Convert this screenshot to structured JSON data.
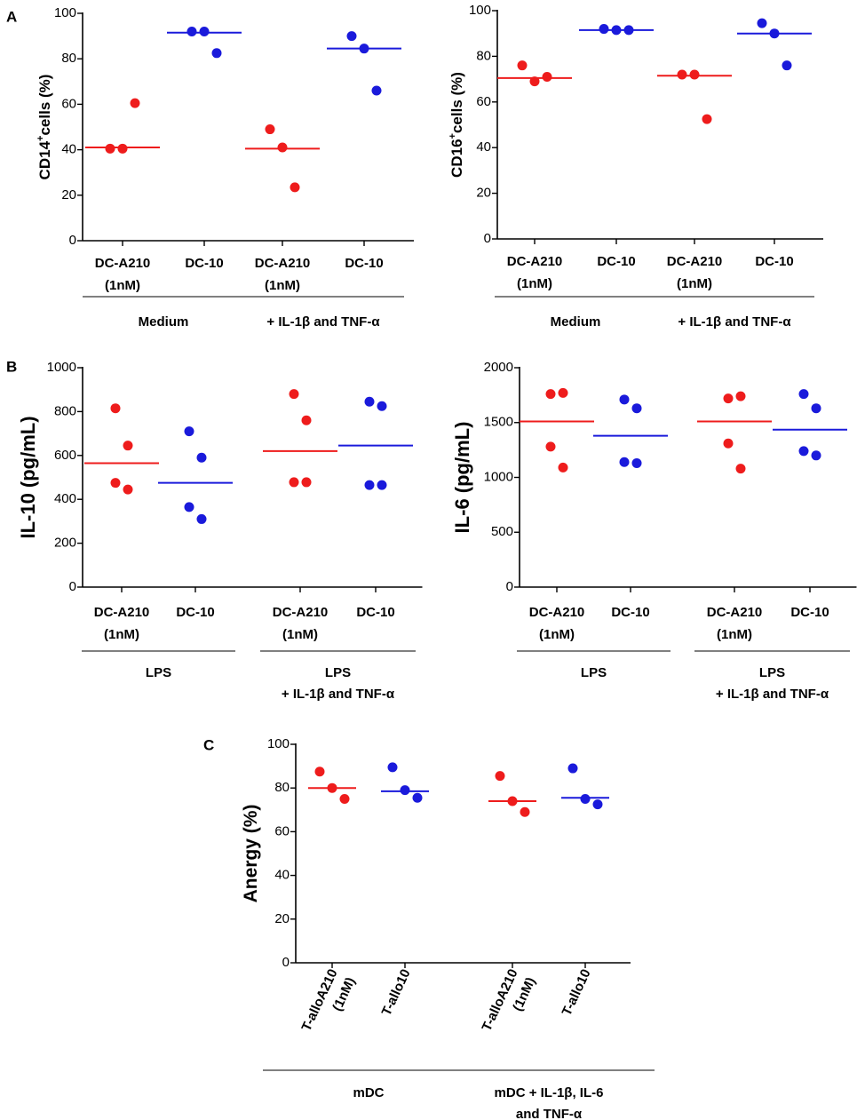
{
  "colors": {
    "dc_a210": "#ee1c1c",
    "dc_10": "#1a1adb",
    "axis": "#000000"
  },
  "chart_data": [
    {
      "id": "A1",
      "type": "scatter",
      "panel_letter": "A",
      "ylabel_main": "CD14",
      "ylabel_sup": "+",
      "ylabel_tail": "cells (%)",
      "ylim": [
        0,
        100
      ],
      "yticks": [
        "0",
        "20",
        "40",
        "60",
        "80",
        "100"
      ],
      "categories": [
        {
          "label": [
            "DC-A210",
            "(1nM)"
          ],
          "color_key": "dc_a210",
          "points": [
            40.5,
            40.5,
            60.5
          ],
          "median": 41
        },
        {
          "label": [
            "DC-10"
          ],
          "color_key": "dc_10",
          "points": [
            92,
            92,
            82.5
          ],
          "median": 91.5
        },
        {
          "label": [
            "DC-A210",
            "(1nM)"
          ],
          "color_key": "dc_a210",
          "points": [
            49,
            41,
            23.5
          ],
          "median": 40.5
        },
        {
          "label": [
            "DC-10"
          ],
          "color_key": "dc_10",
          "points": [
            90,
            84.5,
            66
          ],
          "median": 84.5
        }
      ],
      "groups": [
        {
          "label": [
            "Medium"
          ],
          "span": [
            0,
            1
          ]
        },
        {
          "label": [
            "+ IL-1β and TNF-α"
          ],
          "span": [
            2,
            3
          ]
        }
      ]
    },
    {
      "id": "A2",
      "type": "scatter",
      "panel_letter": "",
      "ylabel_main": "CD16",
      "ylabel_sup": "+",
      "ylabel_tail": "cells (%)",
      "ylim": [
        0,
        100
      ],
      "yticks": [
        "0",
        "20",
        "40",
        "60",
        "80",
        "100"
      ],
      "categories": [
        {
          "label": [
            "DC-A210",
            "(1nM)"
          ],
          "color_key": "dc_a210",
          "points": [
            76,
            69,
            71
          ],
          "median": 70.5
        },
        {
          "label": [
            "DC-10"
          ],
          "color_key": "dc_10",
          "points": [
            92,
            91.5,
            91.5
          ],
          "median": 91.5
        },
        {
          "label": [
            "DC-A210",
            "(1nM)"
          ],
          "color_key": "dc_a210",
          "points": [
            72,
            72,
            52.5
          ],
          "median": 71.5
        },
        {
          "label": [
            "DC-10"
          ],
          "color_key": "dc_10",
          "points": [
            94.5,
            90,
            76
          ],
          "median": 90
        }
      ],
      "groups": [
        {
          "label": [
            "Medium"
          ],
          "span": [
            0,
            1
          ]
        },
        {
          "label": [
            "+ IL-1β and TNF-α"
          ],
          "span": [
            2,
            3
          ]
        }
      ]
    },
    {
      "id": "B1",
      "type": "scatter",
      "panel_letter": "B",
      "ylabel_main": "IL-10 (pg/mL)",
      "ylabel_sup": "",
      "ylabel_tail": "",
      "ylim": [
        0,
        1000
      ],
      "yticks": [
        "0",
        "200",
        "400",
        "600",
        "800",
        "1000"
      ],
      "categories": [
        {
          "label": [
            "DC-A210",
            "(1nM)"
          ],
          "color_key": "dc_a210",
          "points": [
            815,
            645,
            475,
            445
          ],
          "median": 565
        },
        {
          "label": [
            "DC-10"
          ],
          "color_key": "dc_10",
          "points": [
            710,
            590,
            365,
            310
          ],
          "median": 475
        },
        {
          "label": [
            "DC-A210",
            "(1nM)"
          ],
          "color_key": "dc_a210",
          "points": [
            880,
            760,
            478,
            478
          ],
          "median": 620
        },
        {
          "label": [
            "DC-10"
          ],
          "color_key": "dc_10",
          "points": [
            845,
            825,
            465,
            465
          ],
          "median": 645
        }
      ],
      "groups": [
        {
          "label": [
            "LPS"
          ],
          "span": [
            0,
            1
          ]
        },
        {
          "label": [
            "LPS",
            "+ IL-1β and TNF-α"
          ],
          "span": [
            2,
            3
          ]
        }
      ]
    },
    {
      "id": "B2",
      "type": "scatter",
      "panel_letter": "",
      "ylabel_main": "IL-6 (pg/mL)",
      "ylabel_sup": "",
      "ylabel_tail": "",
      "ylim": [
        0,
        2000
      ],
      "yticks": [
        "0",
        "500",
        "1000",
        "1500",
        "2000"
      ],
      "categories": [
        {
          "label": [
            "DC-A210",
            "(1nM)"
          ],
          "color_key": "dc_a210",
          "points": [
            1760,
            1770,
            1280,
            1090
          ],
          "median": 1510
        },
        {
          "label": [
            "DC-10"
          ],
          "color_key": "dc_10",
          "points": [
            1710,
            1630,
            1140,
            1130
          ],
          "median": 1380
        },
        {
          "label": [
            "DC-A210",
            "(1nM)"
          ],
          "color_key": "dc_a210",
          "points": [
            1720,
            1740,
            1310,
            1080
          ],
          "median": 1510
        },
        {
          "label": [
            "DC-10"
          ],
          "color_key": "dc_10",
          "points": [
            1760,
            1630,
            1240,
            1200
          ],
          "median": 1435
        }
      ],
      "groups": [
        {
          "label": [
            "LPS"
          ],
          "span": [
            0,
            1
          ]
        },
        {
          "label": [
            "LPS",
            "+ IL-1β and TNF-α"
          ],
          "span": [
            2,
            3
          ]
        }
      ]
    },
    {
      "id": "C",
      "type": "scatter",
      "panel_letter": "C",
      "ylabel_main": "Anergy (%)",
      "ylabel_sup": "",
      "ylabel_tail": "",
      "ylim": [
        0,
        100
      ],
      "yticks": [
        "0",
        "20",
        "40",
        "60",
        "80",
        "100"
      ],
      "categories": [
        {
          "label": [
            "T-alloA210",
            "(1nM)"
          ],
          "color_key": "dc_a210",
          "points": [
            87.5,
            80,
            75
          ],
          "median": 80
        },
        {
          "label": [
            "T-allo10"
          ],
          "color_key": "dc_10",
          "points": [
            89.5,
            79,
            75.5
          ],
          "median": 78.5
        },
        {
          "label": [
            "T-alloA210",
            "(1nM)"
          ],
          "color_key": "dc_a210",
          "points": [
            85.5,
            74,
            69
          ],
          "median": 74
        },
        {
          "label": [
            "T-allo10"
          ],
          "color_key": "dc_10",
          "points": [
            89,
            75,
            72.5
          ],
          "median": 75.5
        }
      ],
      "groups": [
        {
          "label": [
            "mDC"
          ],
          "span": [
            0,
            1
          ]
        },
        {
          "label": [
            "mDC + IL-1β, IL-6",
            "and TNF-α"
          ],
          "span": [
            2,
            3
          ]
        }
      ]
    }
  ]
}
